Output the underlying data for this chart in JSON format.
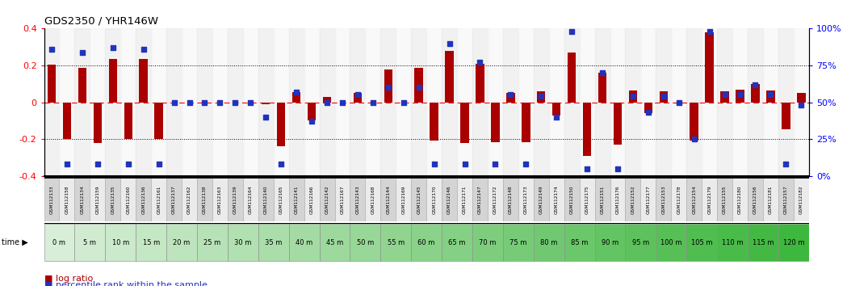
{
  "title": "GDS2350 / YHR146W",
  "categories": [
    "GSM112133",
    "GSM112158",
    "GSM112134",
    "GSM112159",
    "GSM112135",
    "GSM112160",
    "GSM112136",
    "GSM112161",
    "GSM112137",
    "GSM112162",
    "GSM112138",
    "GSM112163",
    "GSM112139",
    "GSM112164",
    "GSM112140",
    "GSM112165",
    "GSM112141",
    "GSM112166",
    "GSM112142",
    "GSM112167",
    "GSM112143",
    "GSM112168",
    "GSM112144",
    "GSM112169",
    "GSM112145",
    "GSM112170",
    "GSM112146",
    "GSM112171",
    "GSM112147",
    "GSM112172",
    "GSM112148",
    "GSM112173",
    "GSM112149",
    "GSM112174",
    "GSM112150",
    "GSM112175",
    "GSM112151",
    "GSM112176",
    "GSM112152",
    "GSM112177",
    "GSM112153",
    "GSM112178",
    "GSM112154",
    "GSM112179",
    "GSM112155",
    "GSM112180",
    "GSM112156",
    "GSM112181",
    "GSM112157",
    "GSM112182"
  ],
  "log_ratio": [
    0.205,
    -0.2,
    0.185,
    -0.22,
    0.235,
    -0.2,
    0.235,
    -0.2,
    0.0,
    0.0,
    0.0,
    0.0,
    0.0,
    0.0,
    -0.01,
    -0.24,
    0.055,
    -0.1,
    0.03,
    0.0,
    0.05,
    0.0,
    0.18,
    0.0,
    0.185,
    -0.21,
    0.28,
    -0.22,
    0.21,
    -0.215,
    0.05,
    -0.215,
    0.06,
    -0.07,
    0.27,
    -0.29,
    0.16,
    -0.23,
    0.065,
    -0.06,
    0.06,
    -0.005,
    -0.21,
    0.38,
    0.06,
    0.07,
    0.1,
    0.065,
    -0.145,
    0.05
  ],
  "percentile": [
    86,
    8,
    84,
    8,
    87,
    8,
    86,
    8,
    50,
    50,
    50,
    50,
    50,
    50,
    40,
    8,
    57,
    37,
    50,
    50,
    55,
    50,
    60,
    50,
    60,
    8,
    90,
    8,
    77,
    8,
    55,
    8,
    54,
    40,
    98,
    5,
    70,
    5,
    54,
    43,
    54,
    50,
    25,
    98,
    55,
    55,
    62,
    55,
    8,
    48
  ],
  "time_labels": [
    "0 m",
    "5 m",
    "10 m",
    "15 m",
    "20 m",
    "25 m",
    "30 m",
    "35 m",
    "40 m",
    "45 m",
    "50 m",
    "55 m",
    "60 m",
    "65 m",
    "70 m",
    "75 m",
    "80 m",
    "85 m",
    "90 m",
    "95 m",
    "100 m",
    "105 m",
    "110 m",
    "115 m",
    "120 m"
  ],
  "bar_color": "#AA0000",
  "dot_color": "#2233BB",
  "ylim": [
    -0.4,
    0.4
  ],
  "y2lim": [
    0,
    100
  ],
  "yticks_left": [
    -0.4,
    -0.2,
    0.0,
    0.2,
    0.4
  ],
  "ytick_labels_left": [
    "-0.4",
    "-0.2",
    "0",
    "0.2",
    "0.4"
  ],
  "yticks_right": [
    0,
    25,
    50,
    75,
    100
  ],
  "ytick_labels_right": [
    "0%",
    "25%",
    "50%",
    "75%",
    "100%"
  ],
  "legend_log_ratio": "log ratio",
  "legend_percentile": "percentile rank within the sample",
  "col_bg_even": "#e8e8e8",
  "col_bg_odd": "#f5f5f5",
  "label_bg_even": "#d4d4d4",
  "label_bg_odd": "#ebebeb"
}
